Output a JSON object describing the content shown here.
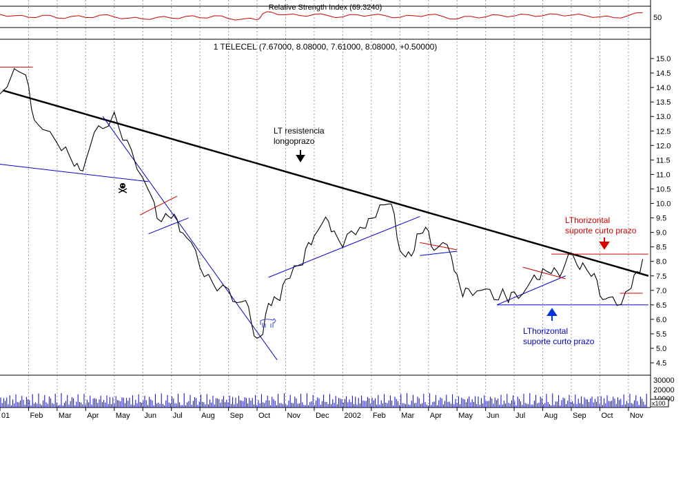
{
  "rsi": {
    "title": "Relative Strength Index (69.3240)",
    "tick_label": "50"
  },
  "main": {
    "title": "1 TELECEL (7.67000, 8.08000, 7.61000, 8.08000, +0.50000)"
  },
  "annotations": {
    "lt_resist_1": "LT resistencia",
    "lt_resist_2": "longoprazo",
    "lt_horiz_red_1": "LThorizontal",
    "lt_horiz_red_2": "suporte curto prazo",
    "lt_horiz_blue_1": "LThorizontal",
    "lt_horiz_blue_2": "suporte curto prazo"
  },
  "volume": {
    "ticks": [
      "30000",
      "20000",
      "10000"
    ],
    "unit": "x100"
  },
  "colors": {
    "price": "#000000",
    "rsi": "#cc0000",
    "trend_black": "#000000",
    "trend_blue": "#0000cc",
    "trend_red": "#cc0000",
    "grid": "#9a9a9a",
    "volume": "#0000cc",
    "arrow_red": "#dd0000",
    "arrow_blue": "#0033dd"
  },
  "chart_data": {
    "type": "line",
    "xaxis": {
      "labels": [
        "01",
        "Feb",
        "Mar",
        "Apr",
        "May",
        "Jun",
        "Jul",
        "Aug",
        "Sep",
        "Oct",
        "Nov",
        "Dec",
        "2002",
        "Feb",
        "Mar",
        "Apr",
        "May",
        "Jun",
        "Jul",
        "Aug",
        "Sep",
        "Oct",
        "Nov"
      ]
    },
    "yaxis": {
      "ticks": [
        "15.0",
        "14.5",
        "14.0",
        "13.5",
        "13.0",
        "12.5",
        "12.0",
        "11.5",
        "11.0",
        "10.5",
        "10.0",
        "9.5",
        "9.0",
        "8.5",
        "8.0",
        "7.5",
        "7.0",
        "6.5",
        "6.0",
        "5.5",
        "5.0",
        "4.5"
      ],
      "ylim": [
        4.2,
        15.6
      ]
    },
    "series": [
      {
        "values": [
          [
            0.0,
            13.9
          ],
          [
            0.5,
            14.5
          ],
          [
            0.8,
            14.6
          ],
          [
            1.0,
            13.9
          ],
          [
            1.2,
            13.0
          ],
          [
            1.5,
            12.4
          ],
          [
            2.0,
            12.2
          ],
          [
            2.3,
            11.8
          ],
          [
            2.6,
            11.4
          ],
          [
            2.8,
            11.0
          ],
          [
            3.0,
            11.6
          ],
          [
            3.3,
            12.3
          ],
          [
            3.6,
            12.7
          ],
          [
            4.0,
            13.0
          ],
          [
            4.3,
            12.3
          ],
          [
            4.6,
            11.7
          ],
          [
            5.0,
            11.0
          ],
          [
            5.3,
            10.1
          ],
          [
            5.5,
            9.6
          ],
          [
            5.8,
            9.5
          ],
          [
            6.0,
            9.6
          ],
          [
            6.2,
            9.3
          ],
          [
            6.4,
            9.1
          ],
          [
            6.7,
            8.5
          ],
          [
            7.0,
            7.9
          ],
          [
            7.3,
            7.4
          ],
          [
            7.6,
            7.1
          ],
          [
            8.0,
            6.9
          ],
          [
            8.3,
            6.7
          ],
          [
            8.6,
            6.5
          ],
          [
            8.8,
            6.0
          ],
          [
            9.0,
            5.2
          ],
          [
            9.2,
            5.6
          ],
          [
            9.4,
            6.4
          ],
          [
            9.6,
            6.9
          ],
          [
            9.8,
            6.5
          ],
          [
            10.0,
            7.5
          ],
          [
            10.3,
            7.7
          ],
          [
            10.6,
            8.0
          ],
          [
            10.8,
            8.5
          ],
          [
            11.0,
            9.0
          ],
          [
            11.3,
            9.2
          ],
          [
            11.5,
            9.5
          ],
          [
            11.7,
            8.9
          ],
          [
            12.0,
            8.6
          ],
          [
            12.3,
            8.9
          ],
          [
            12.6,
            9.3
          ],
          [
            12.8,
            9.0
          ],
          [
            13.0,
            9.6
          ],
          [
            13.3,
            9.8
          ],
          [
            13.6,
            10.1
          ],
          [
            13.8,
            9.5
          ],
          [
            14.0,
            8.5
          ],
          [
            14.2,
            8.0
          ],
          [
            14.4,
            8.3
          ],
          [
            14.6,
            8.8
          ],
          [
            14.8,
            9.1
          ],
          [
            15.0,
            8.9
          ],
          [
            15.2,
            8.5
          ],
          [
            15.5,
            8.5
          ],
          [
            15.8,
            8.3
          ],
          [
            16.0,
            7.4
          ],
          [
            16.2,
            6.9
          ],
          [
            16.4,
            6.9
          ],
          [
            16.7,
            7.1
          ],
          [
            17.0,
            6.9
          ],
          [
            17.3,
            6.8
          ],
          [
            17.6,
            6.9
          ],
          [
            17.8,
            6.7
          ],
          [
            18.0,
            6.8
          ],
          [
            18.3,
            7.0
          ],
          [
            18.6,
            7.2
          ],
          [
            18.8,
            7.5
          ],
          [
            19.0,
            7.6
          ],
          [
            19.3,
            7.7
          ],
          [
            19.5,
            7.5
          ],
          [
            19.7,
            7.8
          ],
          [
            19.9,
            8.1
          ],
          [
            20.2,
            8.0
          ],
          [
            20.4,
            7.8
          ],
          [
            20.7,
            7.6
          ],
          [
            20.9,
            7.2
          ],
          [
            21.1,
            6.8
          ],
          [
            21.3,
            6.6
          ],
          [
            21.6,
            6.6
          ],
          [
            21.9,
            6.8
          ],
          [
            22.1,
            7.2
          ],
          [
            22.3,
            7.5
          ],
          [
            22.5,
            8.08
          ]
        ]
      },
      {
        "name": "Relative Strength Index",
        "values": [
          [
            0,
            62
          ],
          [
            0.5,
            55
          ],
          [
            1,
            48
          ],
          [
            1.5,
            57
          ],
          [
            2,
            45
          ],
          [
            2.5,
            52
          ],
          [
            3,
            47
          ],
          [
            3.5,
            58
          ],
          [
            4,
            50
          ],
          [
            4.5,
            44
          ],
          [
            5,
            40
          ],
          [
            5.5,
            48
          ],
          [
            6,
            44
          ],
          [
            6.5,
            52
          ],
          [
            7,
            46
          ],
          [
            7.5,
            55
          ],
          [
            8,
            42
          ],
          [
            8.5,
            40
          ],
          [
            9,
            36
          ],
          [
            9.2,
            65
          ],
          [
            9.5,
            72
          ],
          [
            10,
            60
          ],
          [
            10.5,
            56
          ],
          [
            11,
            62
          ],
          [
            11.5,
            55
          ],
          [
            12,
            50
          ],
          [
            12.5,
            60
          ],
          [
            13,
            58
          ],
          [
            13.5,
            55
          ],
          [
            14,
            48
          ],
          [
            14.5,
            55
          ],
          [
            15,
            60
          ],
          [
            15.5,
            52
          ],
          [
            16,
            40
          ],
          [
            16.5,
            52
          ],
          [
            17,
            50
          ],
          [
            17.5,
            58
          ],
          [
            18,
            54
          ],
          [
            18.5,
            60
          ],
          [
            19,
            55
          ],
          [
            19.5,
            62
          ],
          [
            20,
            58
          ],
          [
            20.5,
            56
          ],
          [
            21,
            50
          ],
          [
            21.5,
            46
          ],
          [
            22,
            56
          ],
          [
            22.5,
            69.3
          ]
        ]
      }
    ],
    "title": "1 TELECEL (7.67000, 8.08000, 7.61000, 8.08000, +0.50000)",
    "grid": true,
    "legend": "none"
  }
}
